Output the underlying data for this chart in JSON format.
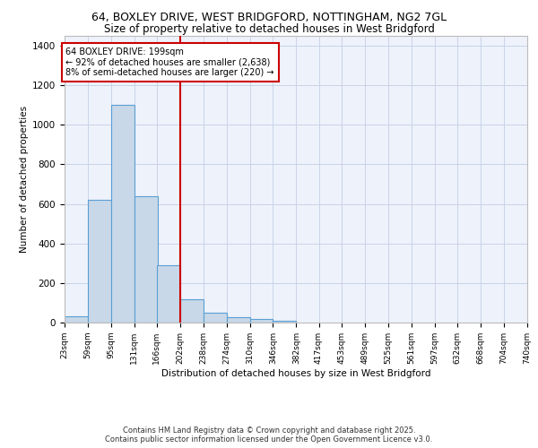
{
  "title_line1": "64, BOXLEY DRIVE, WEST BRIDGFORD, NOTTINGHAM, NG2 7GL",
  "title_line2": "Size of property relative to detached houses in West Bridgford",
  "xlabel": "Distribution of detached houses by size in West Bridgford",
  "ylabel": "Number of detached properties",
  "footer_line1": "Contains HM Land Registry data © Crown copyright and database right 2025.",
  "footer_line2": "Contains public sector information licensed under the Open Government Licence v3.0.",
  "annotation_line1": "64 BOXLEY DRIVE: 199sqm",
  "annotation_line2": "← 92% of detached houses are smaller (2,638)",
  "annotation_line3": "8% of semi-detached houses are larger (220) →",
  "bin_edges": [
    23,
    59,
    95,
    131,
    166,
    202,
    238,
    274,
    310,
    346,
    382,
    417,
    453,
    489,
    525,
    561,
    597,
    632,
    668,
    704,
    740
  ],
  "bar_heights": [
    30,
    620,
    1100,
    640,
    290,
    120,
    50,
    25,
    20,
    10,
    0,
    0,
    0,
    0,
    0,
    0,
    0,
    0,
    0,
    0
  ],
  "bar_color": "#c8d8e8",
  "bar_edge_color": "#5a9fd4",
  "vline_x": 202,
  "vline_color": "#cc0000",
  "box_color": "#cc0000",
  "grid_color": "#c8d4e8",
  "bg_color": "#eef2fb",
  "ylim": [
    0,
    1450
  ],
  "yticks": [
    0,
    200,
    400,
    600,
    800,
    1000,
    1200,
    1400
  ]
}
